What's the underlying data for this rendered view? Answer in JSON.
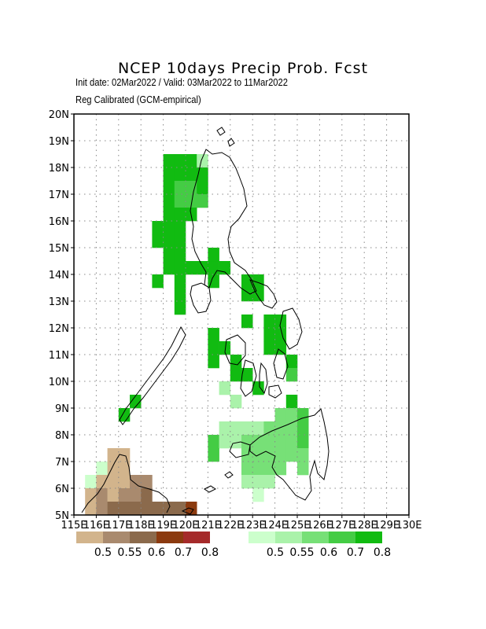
{
  "title": "NCEP 10days Precip Prob. Fcst",
  "subtitle1": "Init date: 02Mar2022 / Valid: 03Mar2022 to 11Mar2022",
  "subtitle2": "Reg Calibrated (GCM-empirical)",
  "map": {
    "lon_range": [
      115,
      130
    ],
    "lat_range": [
      5,
      20
    ],
    "grid_step_deg": 0.5,
    "grid": "dotted every 1 degree",
    "lat_labels": [
      "5N",
      "6N",
      "7N",
      "8N",
      "9N",
      "10N",
      "11N",
      "12N",
      "13N",
      "14N",
      "15N",
      "16N",
      "17N",
      "18N",
      "19N",
      "20N"
    ],
    "lon_labels": [
      "115E",
      "116E",
      "117E",
      "118E",
      "119E",
      "120E",
      "121E",
      "122E",
      "123E",
      "124E",
      "125E",
      "126E",
      "127E",
      "128E",
      "129E",
      "130E"
    ]
  },
  "legends": {
    "dry": {
      "colors": [
        "#d2b48c",
        "#a98a6e",
        "#8b6a4c",
        "#8b3a0f",
        "#a52a2a"
      ],
      "labels": [
        "0.5",
        "0.55",
        "0.6",
        "0.7",
        "0.8"
      ]
    },
    "wet": {
      "colors": [
        "#ccffcc",
        "#aaf2aa",
        "#77e077",
        "#44cc44",
        "#11bb11"
      ],
      "labels": [
        "0.5",
        "0.55",
        "0.6",
        "0.7",
        "0.8"
      ]
    }
  },
  "prob_cells": [
    {
      "lon": 119.0,
      "lat": 17.5,
      "v": 5
    },
    {
      "lon": 119.0,
      "lat": 18.0,
      "v": 5
    },
    {
      "lon": 119.5,
      "lat": 18.0,
      "v": 5
    },
    {
      "lon": 120.0,
      "lat": 18.0,
      "v": 5
    },
    {
      "lon": 120.5,
      "lat": 18.0,
      "v": 2
    },
    {
      "lon": 119.0,
      "lat": 17.0,
      "v": 5
    },
    {
      "lon": 119.5,
      "lat": 17.5,
      "v": 5
    },
    {
      "lon": 120.0,
      "lat": 17.5,
      "v": 5
    },
    {
      "lon": 120.5,
      "lat": 17.5,
      "v": 5
    },
    {
      "lon": 119.5,
      "lat": 17.0,
      "v": 4
    },
    {
      "lon": 120.0,
      "lat": 17.0,
      "v": 4
    },
    {
      "lon": 120.5,
      "lat": 17.0,
      "v": 5
    },
    {
      "lon": 119.0,
      "lat": 16.5,
      "v": 5
    },
    {
      "lon": 119.5,
      "lat": 16.5,
      "v": 4
    },
    {
      "lon": 120.0,
      "lat": 16.5,
      "v": 4
    },
    {
      "lon": 120.5,
      "lat": 16.5,
      "v": 4
    },
    {
      "lon": 119.0,
      "lat": 16.0,
      "v": 5
    },
    {
      "lon": 119.5,
      "lat": 16.0,
      "v": 5
    },
    {
      "lon": 120.0,
      "lat": 16.0,
      "v": 5
    },
    {
      "lon": 118.5,
      "lat": 15.5,
      "v": 5
    },
    {
      "lon": 119.0,
      "lat": 15.5,
      "v": 5
    },
    {
      "lon": 119.5,
      "lat": 15.5,
      "v": 5
    },
    {
      "lon": 118.5,
      "lat": 15.0,
      "v": 5
    },
    {
      "lon": 119.0,
      "lat": 15.0,
      "v": 5
    },
    {
      "lon": 119.5,
      "lat": 15.0,
      "v": 5
    },
    {
      "lon": 119.0,
      "lat": 14.5,
      "v": 5
    },
    {
      "lon": 119.5,
      "lat": 14.5,
      "v": 5
    },
    {
      "lon": 119.0,
      "lat": 14.0,
      "v": 5
    },
    {
      "lon": 119.5,
      "lat": 14.0,
      "v": 5
    },
    {
      "lon": 120.0,
      "lat": 14.0,
      "v": 5
    },
    {
      "lon": 120.5,
      "lat": 14.0,
      "v": 5
    },
    {
      "lon": 121.0,
      "lat": 14.0,
      "v": 5
    },
    {
      "lon": 121.5,
      "lat": 14.0,
      "v": 5
    },
    {
      "lon": 121.0,
      "lat": 14.5,
      "v": 5
    },
    {
      "lon": 118.5,
      "lat": 13.5,
      "v": 5
    },
    {
      "lon": 119.5,
      "lat": 13.5,
      "v": 5
    },
    {
      "lon": 121.0,
      "lat": 13.5,
      "v": 5
    },
    {
      "lon": 122.5,
      "lat": 13.5,
      "v": 5
    },
    {
      "lon": 123.0,
      "lat": 13.5,
      "v": 5
    },
    {
      "lon": 119.5,
      "lat": 13.0,
      "v": 5
    },
    {
      "lon": 122.5,
      "lat": 13.0,
      "v": 5
    },
    {
      "lon": 123.0,
      "lat": 13.0,
      "v": 5
    },
    {
      "lon": 119.5,
      "lat": 12.5,
      "v": 5
    },
    {
      "lon": 122.5,
      "lat": 12.0,
      "v": 5
    },
    {
      "lon": 123.5,
      "lat": 12.0,
      "v": 5
    },
    {
      "lon": 124.0,
      "lat": 12.0,
      "v": 5
    },
    {
      "lon": 121.0,
      "lat": 11.5,
      "v": 5
    },
    {
      "lon": 123.5,
      "lat": 11.5,
      "v": 5
    },
    {
      "lon": 124.0,
      "lat": 11.5,
      "v": 5
    },
    {
      "lon": 121.0,
      "lat": 11.0,
      "v": 5
    },
    {
      "lon": 121.5,
      "lat": 11.0,
      "v": 5
    },
    {
      "lon": 123.5,
      "lat": 11.0,
      "v": 5
    },
    {
      "lon": 124.0,
      "lat": 11.0,
      "v": 5
    },
    {
      "lon": 121.0,
      "lat": 10.5,
      "v": 5
    },
    {
      "lon": 122.0,
      "lat": 10.5,
      "v": 5
    },
    {
      "lon": 124.5,
      "lat": 10.5,
      "v": 5
    },
    {
      "lon": 122.0,
      "lat": 10.0,
      "v": 5
    },
    {
      "lon": 122.5,
      "lat": 10.0,
      "v": 5
    },
    {
      "lon": 124.5,
      "lat": 10.0,
      "v": 4
    },
    {
      "lon": 121.5,
      "lat": 9.5,
      "v": 2
    },
    {
      "lon": 123.0,
      "lat": 9.5,
      "v": 5
    },
    {
      "lon": 122.0,
      "lat": 9.0,
      "v": 2
    },
    {
      "lon": 124.5,
      "lat": 9.0,
      "v": 5
    },
    {
      "lon": 117.5,
      "lat": 9.0,
      "v": 5
    },
    {
      "lon": 117.0,
      "lat": 8.5,
      "v": 5
    },
    {
      "lon": 124.0,
      "lat": 8.5,
      "v": 3
    },
    {
      "lon": 124.5,
      "lat": 8.5,
      "v": 3
    },
    {
      "lon": 125.0,
      "lat": 8.5,
      "v": 4
    },
    {
      "lon": 121.5,
      "lat": 8.0,
      "v": 2
    },
    {
      "lon": 122.0,
      "lat": 8.0,
      "v": 2
    },
    {
      "lon": 122.5,
      "lat": 8.0,
      "v": 2
    },
    {
      "lon": 123.0,
      "lat": 8.0,
      "v": 2
    },
    {
      "lon": 123.5,
      "lat": 8.0,
      "v": 3
    },
    {
      "lon": 124.0,
      "lat": 8.0,
      "v": 3
    },
    {
      "lon": 124.5,
      "lat": 8.0,
      "v": 3
    },
    {
      "lon": 125.0,
      "lat": 8.0,
      "v": 4
    },
    {
      "lon": 121.0,
      "lat": 7.5,
      "v": 4
    },
    {
      "lon": 121.5,
      "lat": 7.5,
      "v": 2
    },
    {
      "lon": 122.0,
      "lat": 7.5,
      "v": 2
    },
    {
      "lon": 122.5,
      "lat": 7.5,
      "v": 3
    },
    {
      "lon": 123.0,
      "lat": 7.5,
      "v": 3
    },
    {
      "lon": 123.5,
      "lat": 7.5,
      "v": 3
    },
    {
      "lon": 124.0,
      "lat": 7.5,
      "v": 3
    },
    {
      "lon": 124.5,
      "lat": 7.5,
      "v": 3
    },
    {
      "lon": 125.0,
      "lat": 7.5,
      "v": 4
    },
    {
      "lon": 121.0,
      "lat": 7.0,
      "v": 4
    },
    {
      "lon": 122.5,
      "lat": 7.0,
      "v": 3
    },
    {
      "lon": 123.0,
      "lat": 7.0,
      "v": 3
    },
    {
      "lon": 123.5,
      "lat": 7.0,
      "v": 3
    },
    {
      "lon": 124.0,
      "lat": 7.0,
      "v": 3
    },
    {
      "lon": 124.5,
      "lat": 7.0,
      "v": 3
    },
    {
      "lon": 125.0,
      "lat": 7.0,
      "v": 3
    },
    {
      "lon": 122.5,
      "lat": 6.5,
      "v": 3
    },
    {
      "lon": 123.0,
      "lat": 6.5,
      "v": 3
    },
    {
      "lon": 123.5,
      "lat": 6.5,
      "v": 3
    },
    {
      "lon": 124.0,
      "lat": 6.5,
      "v": 3
    },
    {
      "lon": 125.0,
      "lat": 6.5,
      "v": 3
    },
    {
      "lon": 122.5,
      "lat": 6.0,
      "v": 2
    },
    {
      "lon": 123.0,
      "lat": 6.0,
      "v": 2
    },
    {
      "lon": 123.5,
      "lat": 6.0,
      "v": 2
    },
    {
      "lon": 123.0,
      "lat": 5.5,
      "v": 1
    },
    {
      "lon": 116.0,
      "lat": 6.5,
      "v": 1
    },
    {
      "lon": 115.5,
      "lat": 6.0,
      "v": 1
    },
    {
      "lon": 116.5,
      "lat": 7.0,
      "v": -1
    },
    {
      "lon": 117.0,
      "lat": 7.0,
      "v": -1
    },
    {
      "lon": 116.5,
      "lat": 6.5,
      "v": -1
    },
    {
      "lon": 117.0,
      "lat": 6.5,
      "v": -1
    },
    {
      "lon": 116.0,
      "lat": 6.0,
      "v": -1
    },
    {
      "lon": 116.5,
      "lat": 6.0,
      "v": -1
    },
    {
      "lon": 117.0,
      "lat": 6.0,
      "v": -1
    },
    {
      "lon": 117.5,
      "lat": 6.0,
      "v": -2
    },
    {
      "lon": 118.0,
      "lat": 6.0,
      "v": -2
    },
    {
      "lon": 115.5,
      "lat": 5.5,
      "v": -1
    },
    {
      "lon": 116.0,
      "lat": 5.5,
      "v": -2
    },
    {
      "lon": 116.5,
      "lat": 5.5,
      "v": -1
    },
    {
      "lon": 117.0,
      "lat": 5.5,
      "v": -2
    },
    {
      "lon": 117.5,
      "lat": 5.5,
      "v": -2
    },
    {
      "lon": 118.0,
      "lat": 5.5,
      "v": -3
    },
    {
      "lon": 115.5,
      "lat": 5.0,
      "v": -1
    },
    {
      "lon": 116.0,
      "lat": 5.0,
      "v": -2
    },
    {
      "lon": 116.5,
      "lat": 5.0,
      "v": -3
    },
    {
      "lon": 117.0,
      "lat": 5.0,
      "v": -3
    },
    {
      "lon": 117.5,
      "lat": 5.0,
      "v": -3
    },
    {
      "lon": 118.0,
      "lat": 5.0,
      "v": -3
    },
    {
      "lon": 118.5,
      "lat": 5.0,
      "v": -3
    },
    {
      "lon": 119.0,
      "lat": 5.0,
      "v": -3
    },
    {
      "lon": 119.5,
      "lat": 5.0,
      "v": -3
    },
    {
      "lon": 120.0,
      "lat": 5.0,
      "v": -4
    }
  ]
}
